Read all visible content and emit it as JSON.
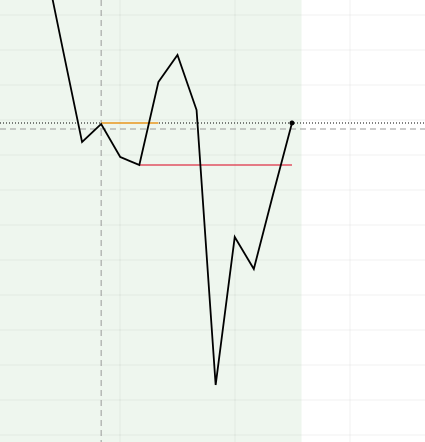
{
  "chart_data": {
    "type": "line",
    "x": [
      0,
      1,
      2,
      3,
      4,
      5,
      6,
      7,
      8,
      9,
      10,
      11,
      12,
      13
    ],
    "series": [
      {
        "color": "#000000",
        "values": [
          485,
          392,
          300,
          318,
          285,
          277,
          360,
          387,
          332,
          57,
          205,
          173,
          247,
          319
        ]
      }
    ],
    "xlim": [
      -2.3,
      19.97
    ],
    "ylim": [
      0,
      442
    ],
    "shaded_region": {
      "x": [
        -2.3,
        13.5
      ],
      "color": "#eef6ee"
    },
    "vertical_line": {
      "x": 3,
      "style": "dashed",
      "color": "#999999"
    },
    "horizontal_lines": [
      {
        "value": 319,
        "style": "dotted",
        "color": "#000000"
      },
      {
        "value": 313,
        "style": "dashed",
        "color": "#999999"
      }
    ],
    "segments": [
      {
        "value": 319,
        "x": [
          3,
          6
        ],
        "color": "#e8961e"
      },
      {
        "value": 277,
        "x": [
          5,
          13
        ],
        "color": "#e05060"
      }
    ],
    "grid": true
  }
}
